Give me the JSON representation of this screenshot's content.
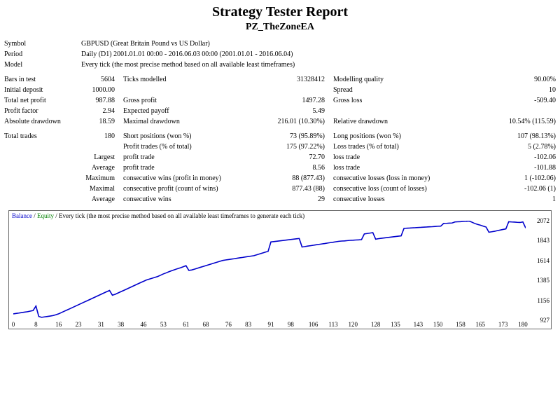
{
  "title": "Strategy Tester Report",
  "subtitle": "PZ_TheZoneEA",
  "header_rows": [
    {
      "label": "Symbol",
      "value": "GBPUSD (Great Britain Pound vs US Dollar)"
    },
    {
      "label": "Period",
      "value": "Daily (D1) 2001.01.01 00:00 - 2016.06.03 00:00 (2001.01.01 - 2016.06.04)"
    },
    {
      "label": "Model",
      "value": "Every tick (the most precise method based on all available least timeframes)"
    }
  ],
  "stat_rows": [
    {
      "l1": "Bars in test",
      "v1": "5604",
      "l2": "Ticks modelled",
      "v2": "31328412",
      "l3": "Modelling quality",
      "v3": "90.00%"
    },
    {
      "l1": "Initial deposit",
      "v1": "1000.00",
      "l2": "",
      "v2": "",
      "l3": "Spread",
      "v3": "10"
    },
    {
      "l1": "Total net profit",
      "v1": "987.88",
      "l2": "Gross profit",
      "v2": "1497.28",
      "l3": "Gross loss",
      "v3": "-509.40"
    },
    {
      "l1": "Profit factor",
      "v1": "2.94",
      "l2": "Expected payoff",
      "v2": "5.49",
      "l3": "",
      "v3": ""
    },
    {
      "l1": "Absolute drawdown",
      "v1": "18.59",
      "l2": "Maximal drawdown",
      "v2": "216.01 (10.30%)",
      "l3": "Relative drawdown",
      "v3": "10.54% (115.59)"
    }
  ],
  "trade_rows": [
    {
      "l1": "Total trades",
      "v1": "180",
      "l2": "Short positions (won %)",
      "v2": "73 (95.89%)",
      "l3": "Long positions (won %)",
      "v3": "107 (98.13%)"
    },
    {
      "l1": "",
      "v1": "",
      "l2": "Profit trades (% of total)",
      "v2": "175 (97.22%)",
      "l3": "Loss trades (% of total)",
      "v3": "5 (2.78%)"
    },
    {
      "l1": "",
      "v1": "Largest",
      "l2": "profit trade",
      "v2": "72.70",
      "l3": "loss trade",
      "v3": "-102.06"
    },
    {
      "l1": "",
      "v1": "Average",
      "l2": "profit trade",
      "v2": "8.56",
      "l3": "loss trade",
      "v3": "-101.88"
    },
    {
      "l1": "",
      "v1": "Maximum",
      "l2": "consecutive wins (profit in money)",
      "v2": "88 (877.43)",
      "l3": "consecutive losses (loss in money)",
      "v3": "1 (-102.06)"
    },
    {
      "l1": "",
      "v1": "Maximal",
      "l2": "consecutive profit (count of wins)",
      "v2": "877.43 (88)",
      "l3": "consecutive loss (count of losses)",
      "v3": "-102.06 (1)"
    },
    {
      "l1": "",
      "v1": "Average",
      "l2": "consecutive wins",
      "v2": "29",
      "l3": "consecutive losses",
      "v3": "1"
    }
  ],
  "chart": {
    "caption_parts": {
      "balance": "Balance",
      "equity": "Equity",
      "rest": "Every tick (the most precise method based on all available least timeframes to generate each tick)"
    },
    "line_color": "#0000cc",
    "line_width": 1.6,
    "xmin": 0,
    "xmax": 181,
    "ymin": 927,
    "ymax": 2072,
    "y_ticks": [
      927,
      1156,
      1385,
      1614,
      1843,
      2072
    ],
    "x_ticks": [
      0,
      8,
      16,
      23,
      31,
      38,
      46,
      53,
      61,
      68,
      76,
      83,
      91,
      98,
      106,
      113,
      120,
      128,
      135,
      143,
      150,
      158,
      165,
      173,
      180
    ],
    "values": [
      1000,
      1005,
      1010,
      1015,
      1020,
      1025,
      1032,
      1038,
      1090,
      970,
      960,
      965,
      970,
      975,
      980,
      990,
      1000,
      1015,
      1030,
      1045,
      1060,
      1075,
      1090,
      1105,
      1120,
      1135,
      1150,
      1165,
      1180,
      1195,
      1210,
      1225,
      1240,
      1255,
      1270,
      1215,
      1225,
      1240,
      1255,
      1270,
      1285,
      1300,
      1315,
      1330,
      1345,
      1360,
      1375,
      1390,
      1400,
      1410,
      1420,
      1430,
      1445,
      1460,
      1472,
      1485,
      1497,
      1508,
      1520,
      1530,
      1542,
      1555,
      1500,
      1505,
      1515,
      1525,
      1535,
      1545,
      1555,
      1565,
      1575,
      1585,
      1595,
      1605,
      1615,
      1620,
      1625,
      1630,
      1635,
      1640,
      1645,
      1650,
      1655,
      1660,
      1665,
      1670,
      1680,
      1690,
      1700,
      1710,
      1720,
      1828,
      1832,
      1836,
      1840,
      1844,
      1848,
      1852,
      1856,
      1860,
      1864,
      1868,
      1770,
      1775,
      1780,
      1785,
      1790,
      1795,
      1800,
      1805,
      1810,
      1815,
      1820,
      1825,
      1830,
      1835,
      1838,
      1840,
      1843,
      1846,
      1848,
      1850,
      1852,
      1854,
      1920,
      1925,
      1930,
      1935,
      1860,
      1865,
      1870,
      1874,
      1878,
      1882,
      1886,
      1890,
      1894,
      1898,
      1984,
      1986,
      1988,
      1990,
      1992,
      1994,
      1996,
      1998,
      2000,
      2002,
      2004,
      2006,
      2008,
      2010,
      2040,
      2042,
      2044,
      2046,
      2058,
      2060,
      2062,
      2064,
      2066,
      2068,
      2055,
      2040,
      2030,
      2020,
      2010,
      2000,
      1940,
      1945,
      1950,
      1958,
      1965,
      1972,
      1978,
      2060,
      2058,
      2056,
      2054,
      2052,
      2058,
      1988
    ],
    "background": "#ffffff",
    "border": "#666666"
  }
}
